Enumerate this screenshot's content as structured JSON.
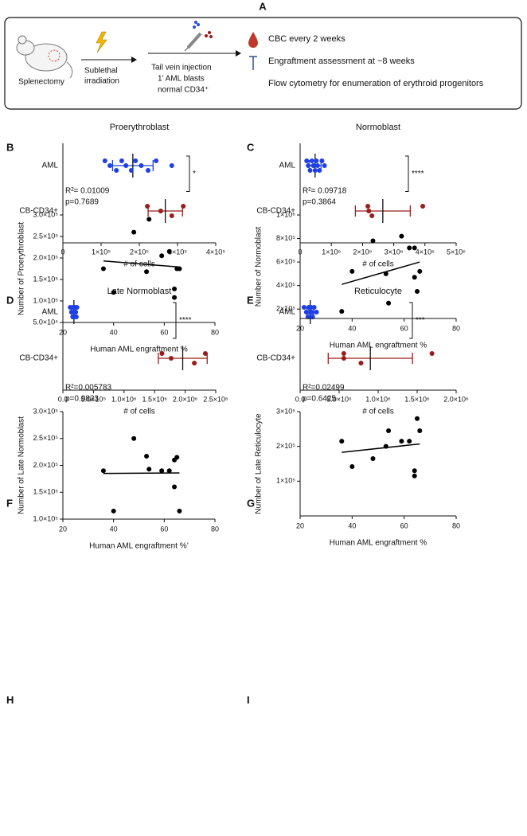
{
  "figure": {
    "panel_labels": [
      "A",
      "B",
      "C",
      "D",
      "E",
      "F",
      "G",
      "H",
      "I"
    ],
    "panel_a": {
      "step1": "Splenectomy",
      "step2_line1": "Sublethal",
      "step2_line2": "irradiation",
      "step3_line1": "Tail vein injection",
      "step3_line2": "1’ AML blasts",
      "step3_line3": "normal CD34⁺",
      "readout1": "CBC every 2 weeks",
      "readout2": "Engraftment assessment at ~8 weeks",
      "readout3": "Flow cytometry for enumeration of erythroid progenitors"
    }
  },
  "chart_data": [
    {
      "type": "dot",
      "title": "Proerythroblast",
      "x_label": "# of cells",
      "xlim": [
        0,
        400000
      ],
      "xticks": [
        0,
        {
          "value": 100000,
          "label": "1×10⁵"
        },
        {
          "value": 200000,
          "label": "2×10⁵"
        },
        {
          "value": 300000,
          "label": "3×10⁵"
        },
        {
          "value": 400000,
          "label": "4×10⁵"
        }
      ],
      "series": [
        {
          "name": "AML",
          "color": "#1f3fe6",
          "values": [
            110000,
            123000,
            140000,
            154000,
            165000,
            179000,
            190000,
            205000,
            223000,
            244000,
            285000
          ],
          "mean": 183000,
          "sd": 53000
        },
        {
          "name": "CB-CD34+",
          "color": "#9b1c1c",
          "values": [
            221000,
            256000,
            285000,
            315000
          ],
          "mean": 268000,
          "sd": 45000
        }
      ],
      "significance": "*"
    },
    {
      "type": "dot",
      "title": "Normoblast",
      "x_label": "# of cells",
      "xlim": [
        0,
        5000000
      ],
      "xticks": [
        0,
        {
          "value": 1000000,
          "label": "1×10⁶"
        },
        {
          "value": 2000000,
          "label": "2×10⁶"
        },
        {
          "value": 3000000,
          "label": "3×10⁶"
        },
        {
          "value": 4000000,
          "label": "4×10⁶"
        },
        {
          "value": 5000000,
          "label": "5×10⁶"
        }
      ],
      "series": [
        {
          "name": "AML",
          "color": "#1f3fe6",
          "values": [
            210000,
            260000,
            320000,
            380000,
            420000,
            480000,
            520000,
            560000,
            620000,
            700000,
            780000
          ],
          "mean": 480000,
          "sd": 190000
        },
        {
          "name": "CB-CD34+",
          "color": "#9b1c1c",
          "values": [
            2170000,
            2200000,
            2300000,
            3930000
          ],
          "mean": 2650000,
          "sd": 880000
        }
      ],
      "significance": "****"
    },
    {
      "type": "dot",
      "title": "Late Normoblast",
      "x_label": "# of cells",
      "xlim": [
        0,
        2500000
      ],
      "xticks": [
        {
          "value": 0,
          "label": "0.0"
        },
        {
          "value": 500000,
          "label": "5.0×10⁵"
        },
        {
          "value": 1000000,
          "label": "1.0×10⁶"
        },
        {
          "value": 1500000,
          "label": "1.5×10⁶"
        },
        {
          "value": 2000000,
          "label": "2.0×10⁶"
        },
        {
          "value": 2500000,
          "label": "2.5×10⁶"
        }
      ],
      "series": [
        {
          "name": "AML",
          "color": "#1f3fe6",
          "values": [
            120000,
            140000,
            160000,
            170000,
            180000,
            190000,
            200000,
            210000,
            220000,
            230000
          ],
          "mean": 180000,
          "sd": 35000
        },
        {
          "name": "CB-CD34+",
          "color": "#9b1c1c",
          "values": [
            1620000,
            1770000,
            2150000,
            2330000
          ],
          "mean": 1960000,
          "sd": 400000
        }
      ],
      "significance": "****"
    },
    {
      "type": "dot",
      "title": "Reticulocyte",
      "x_label": "# of cells",
      "xlim": [
        0,
        2000000
      ],
      "xticks": [
        {
          "value": 0,
          "label": "0.0"
        },
        {
          "value": 500000,
          "label": "5.0×10⁵"
        },
        {
          "value": 1000000,
          "label": "1.0×10⁶"
        },
        {
          "value": 1500000,
          "label": "1.5×10⁶"
        },
        {
          "value": 2000000,
          "label": "2.0×10⁶"
        }
      ],
      "series": [
        {
          "name": "AML",
          "color": "#1f3fe6",
          "values": [
            50000,
            80000,
            100000,
            110000,
            120000,
            130000,
            140000,
            150000,
            160000,
            180000,
            210000
          ],
          "mean": 130000,
          "sd": 45000
        },
        {
          "name": "CB-CD34+",
          "color": "#9b1c1c",
          "values": [
            560000,
            560000,
            780000,
            1690000
          ],
          "mean": 900000,
          "sd": 540000
        }
      ],
      "significance": "***"
    },
    {
      "type": "scatter",
      "annotations": [
        "R²= 0.01009",
        "p=0.7689"
      ],
      "y_label": "Number of Proerythroblast",
      "x_label": "Human AML engraftment %",
      "xlim": [
        20,
        80
      ],
      "xticks": [
        20,
        40,
        60,
        80
      ],
      "ylim": [
        50000,
        300000
      ],
      "yticks": [
        {
          "value": 50000,
          "label": "5.0×10⁴"
        },
        {
          "value": 100000,
          "label": "1.0×10⁵"
        },
        {
          "value": 150000,
          "label": "1.5×10⁵"
        },
        {
          "value": 200000,
          "label": "2.0×10⁵"
        },
        {
          "value": 250000,
          "label": "2.5×10⁵"
        },
        {
          "value": 300000,
          "label": "3.0×10⁵"
        }
      ],
      "color": "#000000",
      "x": [
        36,
        40,
        48,
        53,
        54,
        59,
        62,
        64,
        64,
        65,
        66
      ],
      "values": [
        175000,
        120000,
        260000,
        168000,
        290000,
        205000,
        215000,
        128000,
        108000,
        175000,
        175000
      ],
      "fit": {
        "x": [
          36,
          66
        ],
        "y": [
          193000,
          179000
        ]
      }
    },
    {
      "type": "scatter",
      "annotations": [
        "R²= 0.09718",
        "p=0.3864"
      ],
      "y_label": "Number of Normoblast",
      "x_label": "Human AML engraftment %",
      "xlim": [
        20,
        80
      ],
      "xticks": [
        20,
        40,
        60,
        80
      ],
      "ylim": [
        120000,
        1000000
      ],
      "yticks": [
        {
          "value": 200000,
          "label": "2×10⁵"
        },
        {
          "value": 400000,
          "label": "4×10⁵"
        },
        {
          "value": 600000,
          "label": "6×10⁵"
        },
        {
          "value": 800000,
          "label": "8×10⁵"
        },
        {
          "value": 1000000,
          "label": "1×10⁶"
        }
      ],
      "color": "#000000",
      "x": [
        36,
        40,
        48,
        53,
        54,
        59,
        62,
        64,
        64,
        65,
        66
      ],
      "values": [
        180000,
        520000,
        780000,
        500000,
        250000,
        820000,
        720000,
        720000,
        470000,
        350000,
        520000
      ],
      "fit": {
        "x": [
          36,
          66
        ],
        "y": [
          410000,
          600000
        ]
      }
    },
    {
      "type": "scatter",
      "annotations": [
        "R²=0.005783",
        "p=0.9823"
      ],
      "y_label": "Number of Late Normoblast",
      "x_label": "Human AML engraftment %’",
      "xlim": [
        20,
        80
      ],
      "xticks": [
        20,
        40,
        60,
        80
      ],
      "ylim": [
        100000,
        300000
      ],
      "yticks": [
        {
          "value": 100000,
          "label": "1.0×10⁵"
        },
        {
          "value": 150000,
          "label": "1.5×10⁵"
        },
        {
          "value": 200000,
          "label": "2.0×10⁵"
        },
        {
          "value": 250000,
          "label": "2.5×10⁵"
        },
        {
          "value": 300000,
          "label": "3.0×10⁵"
        }
      ],
      "color": "#000000",
      "x": [
        36,
        40,
        48,
        53,
        54,
        59,
        62,
        64,
        64,
        65,
        66
      ],
      "values": [
        190000,
        115000,
        250000,
        217000,
        193000,
        190000,
        190000,
        160000,
        210000,
        215000,
        115000
      ],
      "fit": {
        "x": [
          36,
          66
        ],
        "y": [
          185000,
          186000
        ]
      }
    },
    {
      "type": "scatter",
      "annotations": [
        "R²=0.02499",
        "p=0.6425"
      ],
      "y_label": "Number of Late Reticulocyte",
      "x_label": "Human AML engraftment %",
      "xlim": [
        20,
        80
      ],
      "xticks": [
        20,
        40,
        60,
        80
      ],
      "ylim": [
        0,
        300000
      ],
      "yticks": [
        {
          "value": 100000,
          "label": "1×10⁵"
        },
        {
          "value": 200000,
          "label": "2×10⁵"
        },
        {
          "value": 300000,
          "label": "3×10⁵"
        }
      ],
      "color": "#000000",
      "x": [
        36,
        40,
        48,
        53,
        54,
        59,
        62,
        64,
        64,
        65,
        66
      ],
      "values": [
        215000,
        142000,
        165000,
        200000,
        245000,
        215000,
        215000,
        115000,
        130000,
        280000,
        245000
      ],
      "fit": {
        "x": [
          36,
          66
        ],
        "y": [
          183000,
          207000
        ]
      }
    }
  ]
}
